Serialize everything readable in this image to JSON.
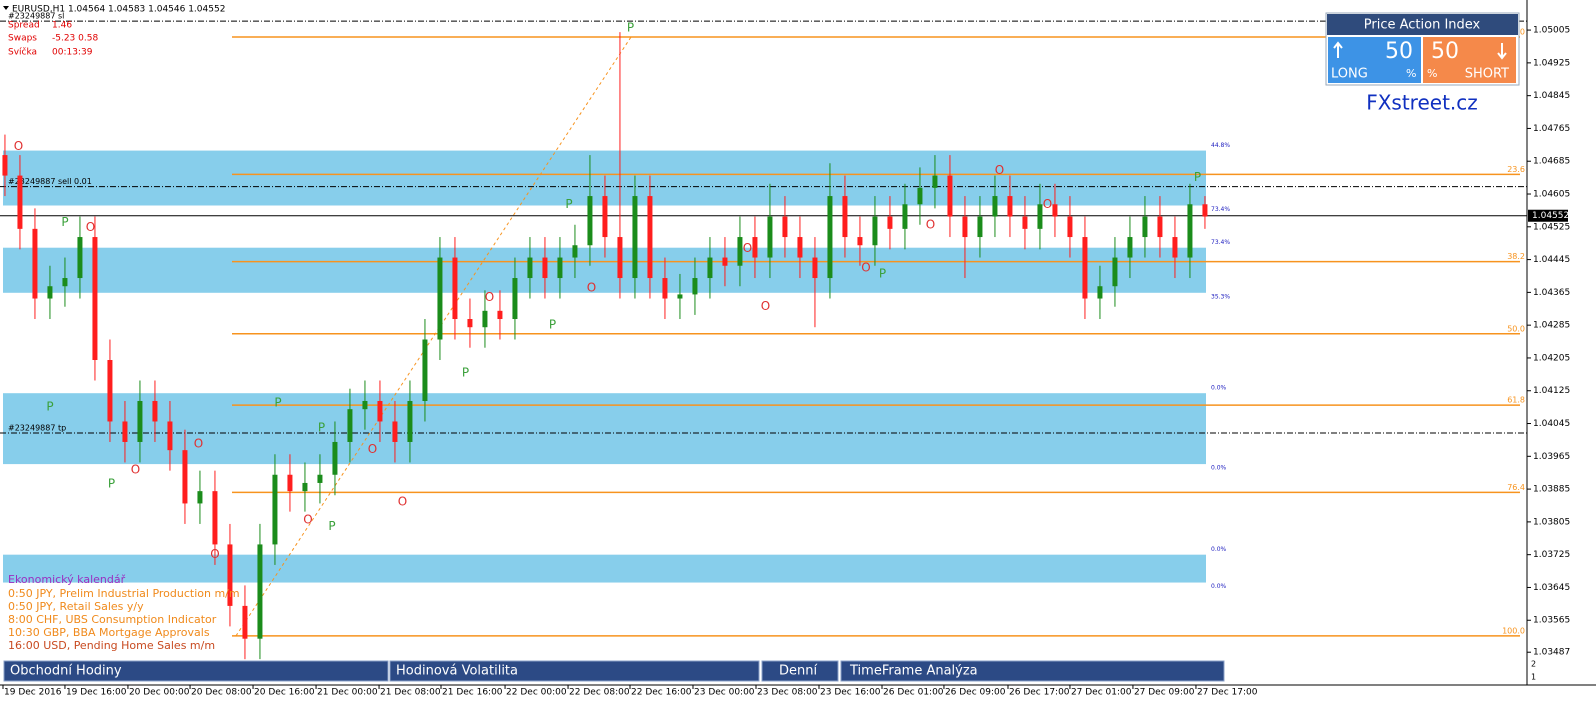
{
  "header": "EURUSD,H1 1.04564 1.04583 1.04546 1.04552",
  "info": [
    {
      "name": "Spread",
      "value": "1.46"
    },
    {
      "name": "Swaps",
      "value": "-5.23 0.58"
    },
    {
      "name": "Svíčka",
      "value": "00:13:39"
    }
  ],
  "chart_data": {
    "type": "candlestick",
    "categories": [
      null,
      null,
      null,
      null,
      null,
      null,
      null,
      null,
      null,
      null,
      null,
      null,
      null,
      null,
      null,
      null,
      null,
      null,
      null,
      null,
      null,
      null,
      null,
      null,
      null,
      null,
      null,
      null,
      null,
      null,
      null,
      null,
      null,
      null,
      null,
      null,
      null,
      null,
      null,
      null,
      null,
      null,
      null,
      null,
      null,
      null,
      null,
      null,
      null,
      null,
      null,
      null,
      null,
      null,
      null,
      null,
      null,
      null,
      null,
      null,
      null,
      null,
      null,
      null,
      null,
      null,
      null,
      null,
      null,
      null,
      null,
      null,
      null,
      null,
      null,
      null,
      null,
      null,
      null,
      null,
      null
    ],
    "open": [
      1.047,
      1.0465,
      1.0452,
      1.0435,
      1.0438,
      1.044,
      1.045,
      1.042,
      1.0405,
      1.04,
      1.041,
      1.0405,
      1.0398,
      1.0385,
      1.0388,
      1.0375,
      1.036,
      1.0352,
      1.0375,
      1.0392,
      1.0388,
      1.039,
      1.0392,
      1.04,
      1.0408,
      1.041,
      1.0405,
      1.04,
      1.041,
      1.0425,
      1.0445,
      1.043,
      1.0428,
      1.0432,
      1.043,
      1.044,
      1.0445,
      1.044,
      1.0445,
      1.0448,
      1.046,
      1.045,
      1.044,
      1.046,
      1.044,
      1.0435,
      1.0436,
      1.044,
      1.0445,
      1.0443,
      1.045,
      1.0445,
      1.0455,
      1.045,
      1.0445,
      1.044,
      1.046,
      1.045,
      1.0448,
      1.0455,
      1.0452,
      1.0458,
      1.0462,
      1.0465,
      1.0455,
      1.045,
      1.0455,
      1.046,
      1.0455,
      1.0452,
      1.0458,
      1.0455,
      1.045,
      1.0435,
      1.0438,
      1.0445,
      1.045,
      1.0455,
      1.045,
      1.0445,
      1.0458
    ],
    "high": [
      1.0475,
      1.047,
      1.0457,
      1.0443,
      1.0445,
      1.0455,
      1.0455,
      1.0425,
      1.041,
      1.0415,
      1.0415,
      1.041,
      1.0403,
      1.0393,
      1.0393,
      1.038,
      1.0365,
      1.038,
      1.0397,
      1.0397,
      1.0395,
      1.0397,
      1.0405,
      1.0413,
      1.0415,
      1.0415,
      1.041,
      1.0415,
      1.043,
      1.045,
      1.045,
      1.0435,
      1.0437,
      1.0437,
      1.0445,
      1.045,
      1.045,
      1.045,
      1.0453,
      1.047,
      1.0465,
      1.05,
      1.0465,
      1.0465,
      1.0445,
      1.0441,
      1.0445,
      1.045,
      1.045,
      1.0455,
      1.0455,
      1.0463,
      1.046,
      1.0455,
      1.045,
      1.0468,
      1.0465,
      1.0455,
      1.046,
      1.046,
      1.0463,
      1.0467,
      1.047,
      1.047,
      1.046,
      1.046,
      1.0465,
      1.0465,
      1.046,
      1.0463,
      1.0463,
      1.046,
      1.0455,
      1.0443,
      1.045,
      1.0455,
      1.046,
      1.046,
      1.0455,
      1.0463,
      1.046
    ],
    "low": [
      1.046,
      1.0447,
      1.043,
      1.043,
      1.0433,
      1.0435,
      1.0415,
      1.04,
      1.0395,
      1.0395,
      1.04,
      1.0393,
      1.038,
      1.038,
      1.037,
      1.0355,
      1.0347,
      1.0347,
      1.037,
      1.0383,
      1.0383,
      1.0385,
      1.0387,
      1.0395,
      1.0403,
      1.04,
      1.0395,
      1.0395,
      1.0405,
      1.042,
      1.0425,
      1.0423,
      1.0423,
      1.0425,
      1.0425,
      1.0435,
      1.0435,
      1.0435,
      1.044,
      1.0443,
      1.0445,
      1.0435,
      1.0435,
      1.0435,
      1.043,
      1.043,
      1.0431,
      1.0435,
      1.0438,
      1.0438,
      1.044,
      1.044,
      1.0445,
      1.044,
      1.0428,
      1.0435,
      1.0445,
      1.0443,
      1.0443,
      1.0447,
      1.0447,
      1.0453,
      1.0457,
      1.045,
      1.044,
      1.0445,
      1.045,
      1.045,
      1.0447,
      1.0447,
      1.045,
      1.0445,
      1.043,
      1.043,
      1.0433,
      1.044,
      1.0445,
      1.0445,
      1.044,
      1.044,
      1.0452
    ],
    "close": [
      1.0465,
      1.0452,
      1.0435,
      1.0438,
      1.044,
      1.045,
      1.042,
      1.0405,
      1.04,
      1.041,
      1.0405,
      1.0398,
      1.0385,
      1.0388,
      1.0375,
      1.036,
      1.0352,
      1.0375,
      1.0392,
      1.0388,
      1.039,
      1.0392,
      1.04,
      1.0408,
      1.041,
      1.0405,
      1.04,
      1.041,
      1.0425,
      1.0445,
      1.043,
      1.0428,
      1.0432,
      1.043,
      1.044,
      1.0445,
      1.044,
      1.0445,
      1.0448,
      1.046,
      1.045,
      1.044,
      1.046,
      1.044,
      1.0435,
      1.0436,
      1.044,
      1.0445,
      1.0443,
      1.045,
      1.0445,
      1.0455,
      1.045,
      1.0445,
      1.044,
      1.046,
      1.045,
      1.0448,
      1.0455,
      1.0452,
      1.0458,
      1.0462,
      1.0465,
      1.0455,
      1.045,
      1.0455,
      1.046,
      1.0455,
      1.0452,
      1.0458,
      1.0455,
      1.045,
      1.0435,
      1.0438,
      1.0445,
      1.045,
      1.0455,
      1.045,
      1.0445,
      1.0458,
      1.0455
    ],
    "up_color": "#1b8c1b",
    "down_color": "#ff1e1e",
    "xlim": [
      -0.33,
      101.47
    ],
    "xticks": [
      {
        "value": -0.13,
        "label": "19 Dec 2016"
      },
      {
        "value": 4.0,
        "label": "19 Dec 16:00"
      },
      {
        "value": 8.2,
        "label": "20 Dec 00:00"
      },
      {
        "value": 12.34,
        "label": "20 Dec 08:00"
      },
      {
        "value": 16.54,
        "label": "20 Dec 16:00"
      },
      {
        "value": 20.74,
        "label": "21 Dec 00:00"
      },
      {
        "value": 24.94,
        "label": "21 Dec 08:00"
      },
      {
        "value": 29.07,
        "label": "21 Dec 16:00"
      },
      {
        "value": 33.34,
        "label": "22 Dec 00:00"
      },
      {
        "value": 37.54,
        "label": "22 Dec 08:00"
      },
      {
        "value": 41.67,
        "label": "22 Dec 16:00"
      },
      {
        "value": 45.87,
        "label": "23 Dec 00:00"
      },
      {
        "value": 50.07,
        "label": "23 Dec 08:00"
      },
      {
        "value": 54.27,
        "label": "23 Dec 16:00"
      },
      {
        "value": 58.47,
        "label": "26 Dec 01:00"
      },
      {
        "value": 62.6,
        "label": "26 Dec 09:00"
      },
      {
        "value": 66.87,
        "label": "26 Dec 17:00"
      },
      {
        "value": 71.0,
        "label": "27 Dec 01:00"
      },
      {
        "value": 75.2,
        "label": "27 Dec 09:00"
      },
      {
        "value": 79.4,
        "label": "27 Dec 17:00"
      }
    ],
    "ylim": [
      1.03407,
      1.05054
    ],
    "yticks": [
      1.05005,
      1.04925,
      1.04845,
      1.04765,
      1.04685,
      1.04605,
      1.04525,
      1.04445,
      1.04365,
      1.04285,
      1.04205,
      1.04125,
      1.04045,
      1.03965,
      1.03885,
      1.03805,
      1.03725,
      1.03645,
      1.03565,
      1.03487
    ],
    "current_price": 1.04552,
    "fib_levels": [
      {
        "value": 1.04988,
        "label": "0.0"
      },
      {
        "value": 1.04653,
        "label": "23.6"
      },
      {
        "value": 1.0444,
        "label": "38.2"
      },
      {
        "value": 1.04264,
        "label": "50.0"
      },
      {
        "value": 1.0409,
        "label": "61.8"
      },
      {
        "value": 1.03877,
        "label": "76.4"
      },
      {
        "value": 1.03527,
        "label": "100.0"
      }
    ],
    "bands": [
      {
        "low": 1.04577,
        "high": 1.04711,
        "top_label": "44.8%",
        "bottom_label": "73.4%"
      },
      {
        "low": 1.04364,
        "high": 1.04474,
        "top_label": "73.4%",
        "bottom_label": "35.3%"
      },
      {
        "low": 1.03946,
        "high": 1.04119,
        "top_label": "0.0%",
        "bottom_label": "0.0%"
      },
      {
        "low": 1.03657,
        "high": 1.03725,
        "top_label": "0.0%",
        "bottom_label": "0.0%"
      }
    ],
    "order_lines": [
      {
        "value": 1.05027,
        "label": "#23249887 sl"
      },
      {
        "value": 1.04623,
        "label": "#23249887 sell 0.01"
      },
      {
        "value": 1.04022,
        "label": "#23249887 tp"
      }
    ],
    "markers": [
      {
        "label": "O",
        "x": 0.9,
        "y": 1.04721
      },
      {
        "label": "P",
        "x": 4,
        "y": 1.04535
      },
      {
        "label": "O",
        "x": 5.7,
        "y": 1.04523
      },
      {
        "label": "P",
        "x": 3,
        "y": 1.04085
      },
      {
        "label": "O",
        "x": 8.7,
        "y": 1.03931
      },
      {
        "label": "P",
        "x": 7.1,
        "y": 1.03897
      },
      {
        "label": "O",
        "x": 12.9,
        "y": 1.03995
      },
      {
        "label": "O",
        "x": 14,
        "y": 1.03725
      },
      {
        "label": "P",
        "x": 18.2,
        "y": 1.04095
      },
      {
        "label": "P",
        "x": 21.1,
        "y": 1.04034
      },
      {
        "label": "O",
        "x": 20.2,
        "y": 1.03809
      },
      {
        "label": "P",
        "x": 21.8,
        "y": 1.03794
      },
      {
        "label": "O",
        "x": 24.5,
        "y": 1.03982
      },
      {
        "label": "O",
        "x": 26.5,
        "y": 1.03853
      },
      {
        "label": "P",
        "x": 30.7,
        "y": 1.04168
      },
      {
        "label": "O",
        "x": 32.3,
        "y": 1.04352
      },
      {
        "label": "P",
        "x": 36.5,
        "y": 1.04286
      },
      {
        "label": "P",
        "x": 37.6,
        "y": 1.04579
      },
      {
        "label": "O",
        "x": 39.1,
        "y": 1.04376
      },
      {
        "label": "P",
        "x": 41.7,
        "y": 1.0501
      },
      {
        "label": "O",
        "x": 49.5,
        "y": 1.04472
      },
      {
        "label": "O",
        "x": 50.7,
        "y": 1.0433
      },
      {
        "label": "O",
        "x": 57.4,
        "y": 1.04425
      },
      {
        "label": "P",
        "x": 58.5,
        "y": 1.0441
      },
      {
        "label": "O",
        "x": 61.7,
        "y": 1.0453
      },
      {
        "label": "O",
        "x": 66.3,
        "y": 1.04662
      },
      {
        "label": "O",
        "x": 69.5,
        "y": 1.04579
      },
      {
        "label": "P",
        "x": 79.5,
        "y": 1.04645
      }
    ]
  },
  "calendar": {
    "title": "Ekonomický kalendář",
    "items": [
      "0:50 JPY, Prelim Industrial Production m/m",
      "0:50 JPY, Retail Sales y/y",
      "8:00 CHF, UBS Consumption Indicator",
      "10:30 GBP, BBA Mortgage Approvals",
      "16:00 USD, Pending Home Sales m/m"
    ]
  },
  "toolbar": [
    "Obchodní Hodiny",
    "Hodinová Volatilita",
    "Denní",
    "TimeFrame Analýza"
  ],
  "widget": {
    "title": "Price Action Index",
    "long": {
      "value": 50,
      "unit": "%",
      "label": "LONG"
    },
    "short": {
      "value": 50,
      "unit": "%",
      "label": "SHORT"
    }
  },
  "brand": "FXstreet.cz",
  "subwindow_scale": [
    "2",
    "1"
  ]
}
